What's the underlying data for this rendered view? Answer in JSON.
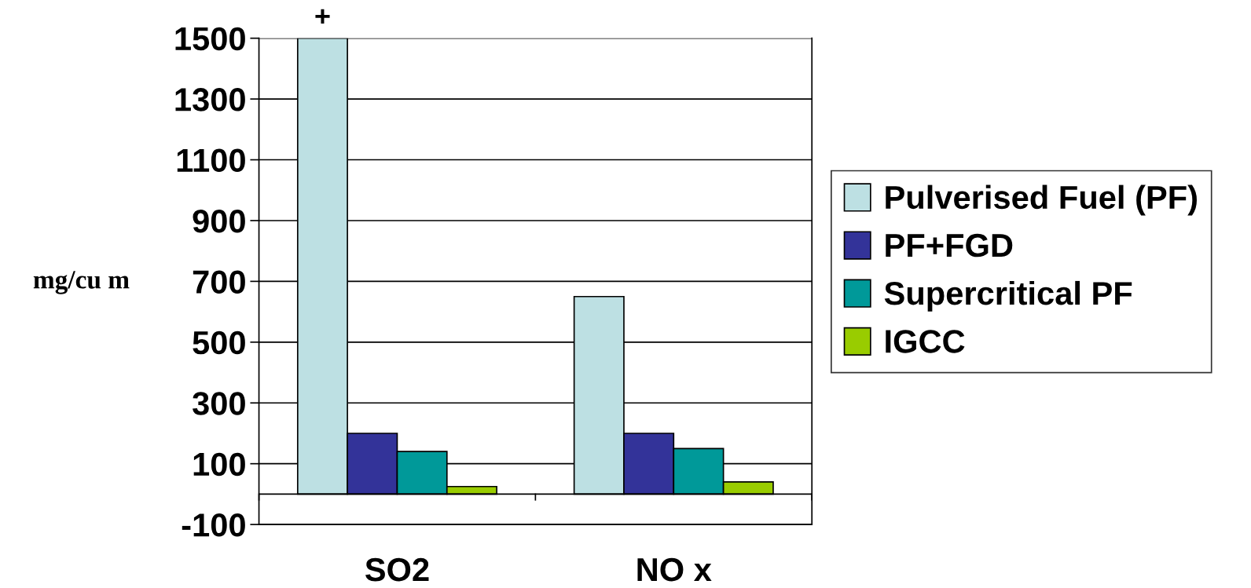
{
  "chart_data": {
    "type": "bar",
    "ylabel": "mg/cu m",
    "categories": [
      "SO2",
      "NO x"
    ],
    "series": [
      {
        "name": "Pulverised Fuel (PF)",
        "color": "#bde0e3",
        "values": [
          1500,
          650
        ]
      },
      {
        "name": "PF+FGD",
        "color": "#333399",
        "values": [
          200,
          200
        ]
      },
      {
        "name": "Supercritical PF",
        "color": "#009999",
        "values": [
          140,
          150
        ]
      },
      {
        "name": "IGCC",
        "color": "#99cc00",
        "values": [
          25,
          40
        ]
      }
    ],
    "ylim": [
      -100,
      1500
    ],
    "yticks": [
      -100,
      100,
      300,
      500,
      700,
      900,
      1100,
      1300,
      1500
    ],
    "grid": "y",
    "legend": "right",
    "annotations": [
      "+"
    ]
  }
}
